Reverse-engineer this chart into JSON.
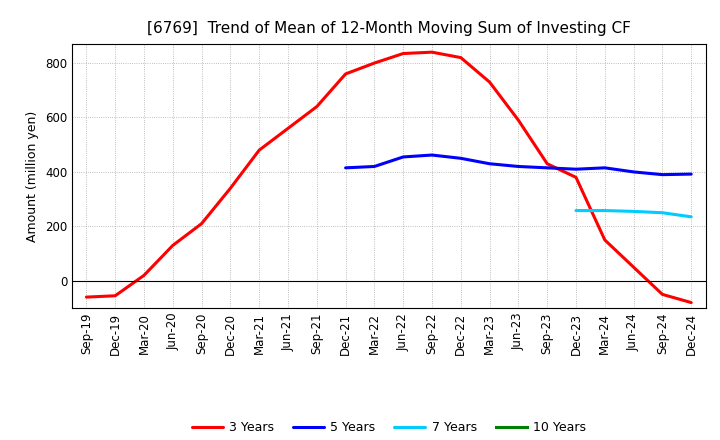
{
  "title": "[6769]  Trend of Mean of 12-Month Moving Sum of Investing CF",
  "ylabel": "Amount (million yen)",
  "x_labels": [
    "Sep-19",
    "Dec-19",
    "Mar-20",
    "Jun-20",
    "Sep-20",
    "Dec-20",
    "Mar-21",
    "Jun-21",
    "Sep-21",
    "Dec-21",
    "Mar-22",
    "Jun-22",
    "Sep-22",
    "Dec-22",
    "Mar-23",
    "Jun-23",
    "Sep-23",
    "Dec-23",
    "Mar-24",
    "Jun-24",
    "Sep-24",
    "Dec-24"
  ],
  "ylim": [
    -100,
    870
  ],
  "yticks": [
    0,
    200,
    400,
    600,
    800
  ],
  "series": {
    "3 Years": {
      "color": "#FF0000",
      "linewidth": 2.2,
      "x_indices": [
        0,
        1,
        2,
        3,
        4,
        5,
        6,
        7,
        8,
        9,
        10,
        11,
        12,
        13,
        14,
        15,
        16,
        17,
        18,
        19,
        20,
        21
      ],
      "values": [
        -60,
        -55,
        20,
        130,
        210,
        340,
        480,
        560,
        640,
        760,
        800,
        835,
        840,
        820,
        730,
        590,
        430,
        380,
        150,
        50,
        -50,
        -80
      ]
    },
    "5 Years": {
      "color": "#0000FF",
      "linewidth": 2.2,
      "x_indices": [
        9,
        10,
        11,
        12,
        13,
        14,
        15,
        16,
        17,
        18,
        19,
        20,
        21
      ],
      "values": [
        415,
        420,
        455,
        462,
        450,
        430,
        420,
        415,
        410,
        415,
        400,
        390,
        392
      ]
    },
    "7 Years": {
      "color": "#00CCFF",
      "linewidth": 2.2,
      "x_indices": [
        17,
        18,
        19,
        20,
        21
      ],
      "values": [
        258,
        258,
        255,
        250,
        235
      ]
    },
    "10 Years": {
      "color": "#008000",
      "linewidth": 2.2,
      "x_indices": [],
      "values": []
    }
  },
  "background_color": "#ffffff",
  "grid_color": "#aaaaaa",
  "title_fontsize": 11,
  "axis_fontsize": 8.5,
  "ylabel_fontsize": 9
}
